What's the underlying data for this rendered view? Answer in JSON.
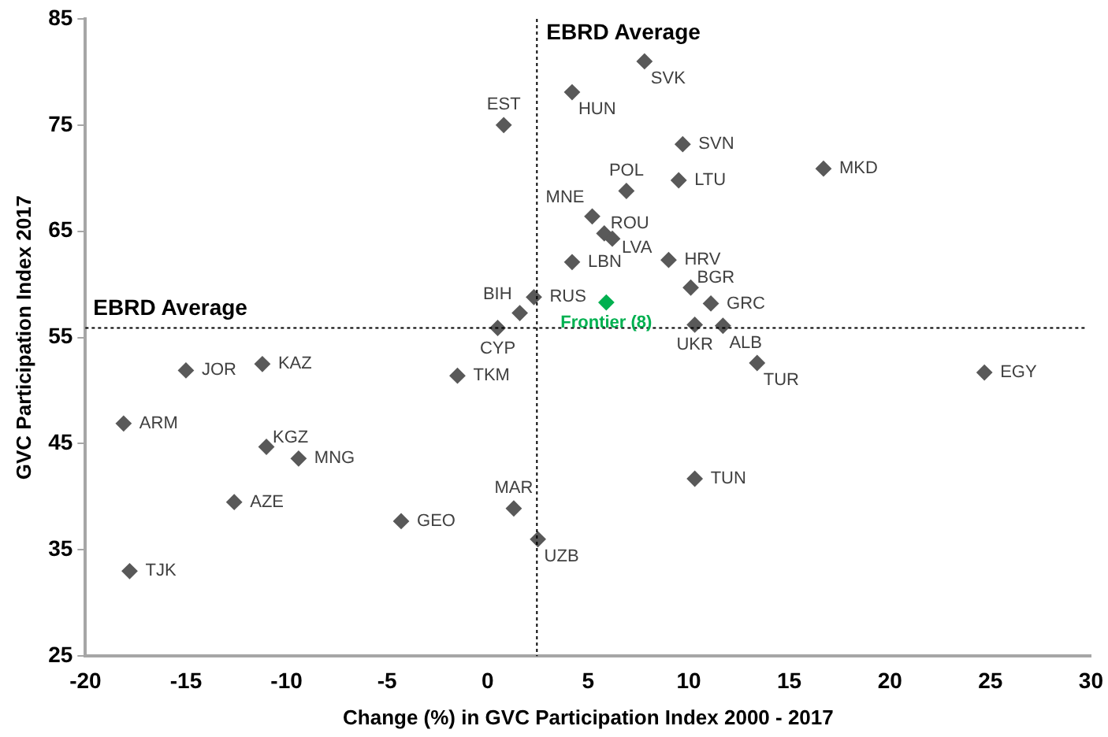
{
  "chart_data": {
    "type": "scatter",
    "xlabel": "Change (%) in GVC Participation Index 2000 - 2017",
    "ylabel": "GVC Participation Index 2017",
    "xlim": [
      -20,
      30
    ],
    "xticks": [
      -20,
      -15,
      -10,
      -5,
      0,
      5,
      10,
      15,
      20,
      25,
      30
    ],
    "ylim": [
      25,
      85
    ],
    "yticks": [
      25,
      35,
      45,
      55,
      65,
      75,
      85
    ],
    "grid": false,
    "legend": false,
    "marker": "diamond",
    "ref_lines": [
      {
        "axis": "x",
        "value": 2.45,
        "label": "EBRD Average",
        "color": "#000000",
        "line_style": "dotted"
      },
      {
        "axis": "y",
        "value": 55.9,
        "label": "EBRD Average",
        "color": "#000000",
        "line_style": "dotted"
      }
    ],
    "series": [
      {
        "name": "EST",
        "color": "#595959",
        "x": [
          0.8
        ],
        "values": [
          75
        ]
      },
      {
        "name": "SVK",
        "color": "#595959",
        "x": [
          7.8
        ],
        "values": [
          81
        ]
      },
      {
        "name": "HUN",
        "color": "#595959",
        "x": [
          4.2
        ],
        "values": [
          78.1
        ]
      },
      {
        "name": "SVN",
        "color": "#595959",
        "x": [
          9.7
        ],
        "values": [
          73.2
        ]
      },
      {
        "name": "LTU",
        "color": "#595959",
        "x": [
          9.5
        ],
        "values": [
          69.8
        ]
      },
      {
        "name": "MKD",
        "color": "#595959",
        "x": [
          16.7
        ],
        "values": [
          70.9
        ]
      },
      {
        "name": "POL",
        "color": "#595959",
        "x": [
          6.9
        ],
        "values": [
          68.8
        ]
      },
      {
        "name": "MNE",
        "color": "#595959",
        "x": [
          5.2
        ],
        "values": [
          66.4
        ]
      },
      {
        "name": "ROU",
        "color": "#595959",
        "x": [
          5.8
        ],
        "values": [
          64.8
        ]
      },
      {
        "name": "LVA",
        "color": "#595959",
        "x": [
          6.2
        ],
        "values": [
          64.3
        ]
      },
      {
        "name": "LBN",
        "color": "#595959",
        "x": [
          4.2
        ],
        "values": [
          62.1
        ]
      },
      {
        "name": "HRV",
        "color": "#595959",
        "x": [
          9
        ],
        "values": [
          62.3
        ]
      },
      {
        "name": "BGR",
        "color": "#595959",
        "x": [
          10.1
        ],
        "values": [
          59.7
        ]
      },
      {
        "name": "GRC",
        "color": "#595959",
        "x": [
          11.1
        ],
        "values": [
          58.2
        ]
      },
      {
        "name": "UKR",
        "color": "#595959",
        "x": [
          10.3
        ],
        "values": [
          56.2
        ]
      },
      {
        "name": "ALB",
        "color": "#595959",
        "x": [
          11.7
        ],
        "values": [
          56.1
        ]
      },
      {
        "name": "TUR",
        "color": "#595959",
        "x": [
          13.4
        ],
        "values": [
          52.6
        ]
      },
      {
        "name": "EGY",
        "color": "#595959",
        "x": [
          24.7
        ],
        "values": [
          51.7
        ]
      },
      {
        "name": "TUN",
        "color": "#595959",
        "x": [
          10.3
        ],
        "values": [
          41.7
        ]
      },
      {
        "name": "UZB",
        "color": "#595959",
        "x": [
          2.5
        ],
        "values": [
          36
        ]
      },
      {
        "name": "JOR",
        "color": "#595959",
        "x": [
          -15
        ],
        "values": [
          51.9
        ]
      },
      {
        "name": "KAZ",
        "color": "#595959",
        "x": [
          -11.2
        ],
        "values": [
          52.5
        ]
      },
      {
        "name": "TKM",
        "color": "#595959",
        "x": [
          -1.5
        ],
        "values": [
          51.4
        ]
      },
      {
        "name": "ARM",
        "color": "#595959",
        "x": [
          -18.1
        ],
        "values": [
          46.9
        ]
      },
      {
        "name": "KGZ",
        "color": "#595959",
        "x": [
          -11
        ],
        "values": [
          44.7
        ]
      },
      {
        "name": "MNG",
        "color": "#595959",
        "x": [
          -9.4
        ],
        "values": [
          43.6
        ]
      },
      {
        "name": "AZE",
        "color": "#595959",
        "x": [
          -12.6
        ],
        "values": [
          39.5
        ]
      },
      {
        "name": "GEO",
        "color": "#595959",
        "x": [
          -4.3
        ],
        "values": [
          37.7
        ]
      },
      {
        "name": "MAR",
        "color": "#595959",
        "x": [
          1.3
        ],
        "values": [
          38.9
        ]
      },
      {
        "name": "TJK",
        "color": "#595959",
        "x": [
          -17.8
        ],
        "values": [
          33
        ]
      },
      {
        "name": "BIH",
        "color": "#595959",
        "x": [
          1.6
        ],
        "values": [
          57.3
        ]
      },
      {
        "name": "RUS",
        "color": "#595959",
        "x": [
          2.3
        ],
        "values": [
          58.8
        ]
      },
      {
        "name": "CYP",
        "color": "#595959",
        "x": [
          0.5
        ],
        "values": [
          55.9
        ]
      },
      {
        "name": "Frontier (8)",
        "color": "#00b050",
        "x": [
          5.9
        ],
        "values": [
          58.3
        ]
      }
    ]
  }
}
